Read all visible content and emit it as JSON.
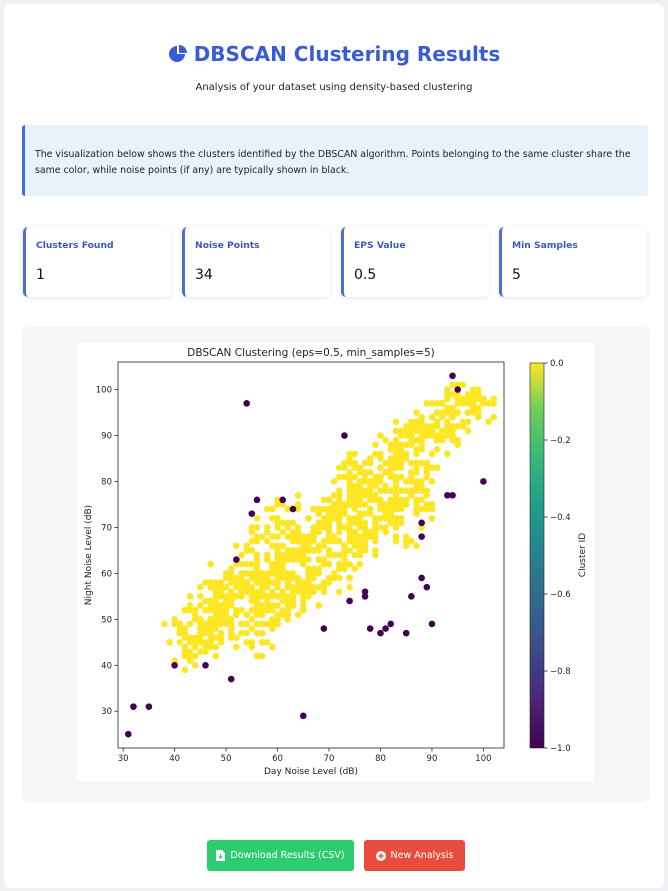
{
  "header": {
    "title": "DBSCAN Clustering Results",
    "subtitle": "Analysis of your dataset using density-based clustering",
    "title_icon": "chart-pie-icon"
  },
  "info": {
    "text": "The visualization below shows the clusters identified by the DBSCAN algorithm. Points belonging to the same cluster share the same color, while noise points (if any) are typically shown in black."
  },
  "stats": [
    {
      "label": "Clusters Found",
      "value": "1"
    },
    {
      "label": "Noise Points",
      "value": "34"
    },
    {
      "label": "EPS Value",
      "value": "0.5"
    },
    {
      "label": "Min Samples",
      "value": "5"
    }
  ],
  "chart_data": {
    "type": "scatter",
    "title": "DBSCAN Clustering (eps=0.5, min_samples=5)",
    "xlabel": "Day Noise Level (dB)",
    "ylabel": "Night Noise Level (dB)",
    "xlim": [
      29,
      104
    ],
    "ylim": [
      22,
      106
    ],
    "xticks": [
      30,
      40,
      50,
      60,
      70,
      80,
      90,
      100
    ],
    "yticks": [
      30,
      40,
      50,
      60,
      70,
      80,
      90,
      100
    ],
    "grid": false,
    "legend": "none",
    "colorbar": {
      "label": "Cluster ID",
      "range": [
        -1.0,
        0.0
      ],
      "ticks": [
        "0.0",
        "−0.2",
        "−0.4",
        "−0.6",
        "−0.8",
        "−1.0"
      ],
      "colormap": "viridis"
    },
    "series": [
      {
        "cluster": 0,
        "color": "#fde725",
        "note_points": "dense band along diagonal",
        "points": [
          [
            41,
            47
          ],
          [
            42,
            44
          ],
          [
            43,
            45
          ],
          [
            44,
            46
          ],
          [
            45,
            48
          ],
          [
            46,
            47
          ],
          [
            47,
            50
          ],
          [
            48,
            49
          ],
          [
            48,
            52
          ],
          [
            49,
            51
          ],
          [
            50,
            53
          ],
          [
            51,
            54
          ],
          [
            52,
            55
          ],
          [
            53,
            56
          ],
          [
            54,
            57
          ],
          [
            55,
            55
          ],
          [
            56,
            58
          ],
          [
            57,
            59
          ],
          [
            58,
            60
          ],
          [
            59,
            61
          ],
          [
            60,
            62
          ],
          [
            61,
            60
          ],
          [
            62,
            63
          ],
          [
            63,
            64
          ],
          [
            64,
            65
          ],
          [
            65,
            66
          ],
          [
            66,
            67
          ],
          [
            67,
            68
          ],
          [
            68,
            69
          ],
          [
            69,
            70
          ],
          [
            70,
            71
          ],
          [
            71,
            72
          ],
          [
            72,
            73
          ],
          [
            73,
            74
          ],
          [
            74,
            75
          ],
          [
            75,
            76
          ],
          [
            76,
            77
          ],
          [
            77,
            78
          ],
          [
            78,
            79
          ],
          [
            79,
            80
          ],
          [
            80,
            81
          ],
          [
            81,
            82
          ],
          [
            82,
            83
          ],
          [
            83,
            84
          ],
          [
            84,
            85
          ],
          [
            85,
            86
          ],
          [
            86,
            88
          ],
          [
            87,
            89
          ],
          [
            88,
            90
          ],
          [
            89,
            91
          ],
          [
            90,
            92
          ],
          [
            91,
            93
          ],
          [
            92,
            94
          ],
          [
            93,
            95
          ],
          [
            94,
            96
          ],
          [
            95,
            98
          ],
          [
            96,
            97
          ],
          [
            97,
            99
          ],
          [
            98,
            97
          ],
          [
            99,
            96
          ],
          [
            100,
            97
          ],
          [
            56,
            49
          ],
          [
            58,
            52
          ],
          [
            60,
            55
          ],
          [
            62,
            57
          ],
          [
            64,
            59
          ],
          [
            66,
            61
          ],
          [
            68,
            63
          ],
          [
            70,
            65
          ],
          [
            72,
            67
          ],
          [
            74,
            69
          ],
          [
            76,
            71
          ],
          [
            78,
            73
          ],
          [
            80,
            75
          ],
          [
            82,
            76
          ],
          [
            52,
            58
          ],
          [
            54,
            60
          ],
          [
            56,
            62
          ],
          [
            58,
            64
          ],
          [
            60,
            66
          ],
          [
            62,
            68
          ],
          [
            64,
            70
          ],
          [
            66,
            72
          ],
          [
            68,
            74
          ],
          [
            70,
            76
          ],
          [
            72,
            78
          ],
          [
            74,
            80
          ],
          [
            76,
            82
          ],
          [
            46,
            52
          ],
          [
            48,
            55
          ],
          [
            50,
            57
          ],
          [
            45,
            50
          ],
          [
            65,
            53
          ],
          [
            67,
            56
          ],
          [
            69,
            58
          ],
          [
            55,
            44
          ],
          [
            57,
            47
          ],
          [
            59,
            50
          ],
          [
            61,
            52
          ],
          [
            63,
            54
          ],
          [
            71,
            60
          ],
          [
            73,
            62
          ],
          [
            75,
            64
          ],
          [
            77,
            66
          ],
          [
            79,
            68
          ],
          [
            81,
            70
          ],
          [
            83,
            72
          ],
          [
            85,
            67
          ],
          [
            87,
            74
          ],
          [
            88,
            76
          ],
          [
            90,
            86
          ],
          [
            92,
            89
          ],
          [
            89,
            82
          ],
          [
            86,
            80
          ],
          [
            84,
            78
          ],
          [
            50,
            60
          ],
          [
            52,
            62
          ],
          [
            54,
            65
          ],
          [
            56,
            68
          ],
          [
            58,
            70
          ],
          [
            60,
            72
          ],
          [
            62,
            74
          ],
          [
            73,
            83
          ],
          [
            75,
            84
          ],
          [
            77,
            82
          ],
          [
            80,
            86
          ],
          [
            82,
            88
          ],
          [
            85,
            90
          ],
          [
            88,
            92
          ],
          [
            91,
            95
          ],
          [
            93,
            98
          ],
          [
            96,
            92
          ],
          [
            94,
            91
          ],
          [
            92,
            91
          ],
          [
            45,
            55
          ],
          [
            43,
            52
          ],
          [
            44,
            42
          ],
          [
            47,
            45
          ],
          [
            49,
            47
          ],
          [
            51,
            48
          ],
          [
            53,
            49
          ],
          [
            55,
            50
          ],
          [
            57,
            51
          ],
          [
            59,
            53
          ],
          [
            61,
            55
          ],
          [
            63,
            57
          ],
          [
            65,
            58
          ],
          [
            67,
            60
          ],
          [
            69,
            62
          ],
          [
            71,
            64
          ],
          [
            73,
            66
          ],
          [
            75,
            68
          ],
          [
            77,
            70
          ],
          [
            79,
            72
          ],
          [
            81,
            74
          ],
          [
            83,
            76
          ],
          [
            85,
            78
          ],
          [
            87,
            80
          ],
          [
            89,
            84
          ]
        ]
      },
      {
        "cluster": -1,
        "label": "noise",
        "color": "#440154",
        "points": [
          [
            31,
            25
          ],
          [
            32,
            31
          ],
          [
            35,
            31
          ],
          [
            40,
            40
          ],
          [
            46,
            40
          ],
          [
            51,
            37
          ],
          [
            54,
            97
          ],
          [
            55,
            73
          ],
          [
            56,
            76
          ],
          [
            52,
            63
          ],
          [
            61,
            76
          ],
          [
            63,
            74
          ],
          [
            65,
            29
          ],
          [
            69,
            48
          ],
          [
            73,
            90
          ],
          [
            77,
            55
          ],
          [
            77,
            56
          ],
          [
            78,
            48
          ],
          [
            80,
            47
          ],
          [
            81,
            48
          ],
          [
            82,
            49
          ],
          [
            85,
            47
          ],
          [
            86,
            55
          ],
          [
            88,
            68
          ],
          [
            88,
            71
          ],
          [
            88,
            59
          ],
          [
            89,
            57
          ],
          [
            90,
            49
          ],
          [
            93,
            77
          ],
          [
            94,
            77
          ],
          [
            94,
            103
          ],
          [
            95,
            100
          ],
          [
            100,
            80
          ],
          [
            74,
            54
          ]
        ]
      }
    ]
  },
  "buttons": {
    "download_label": "Download Results (CSV)",
    "new_label": "New Analysis",
    "download_icon": "file-download-icon",
    "new_icon": "plus-circle-icon"
  }
}
